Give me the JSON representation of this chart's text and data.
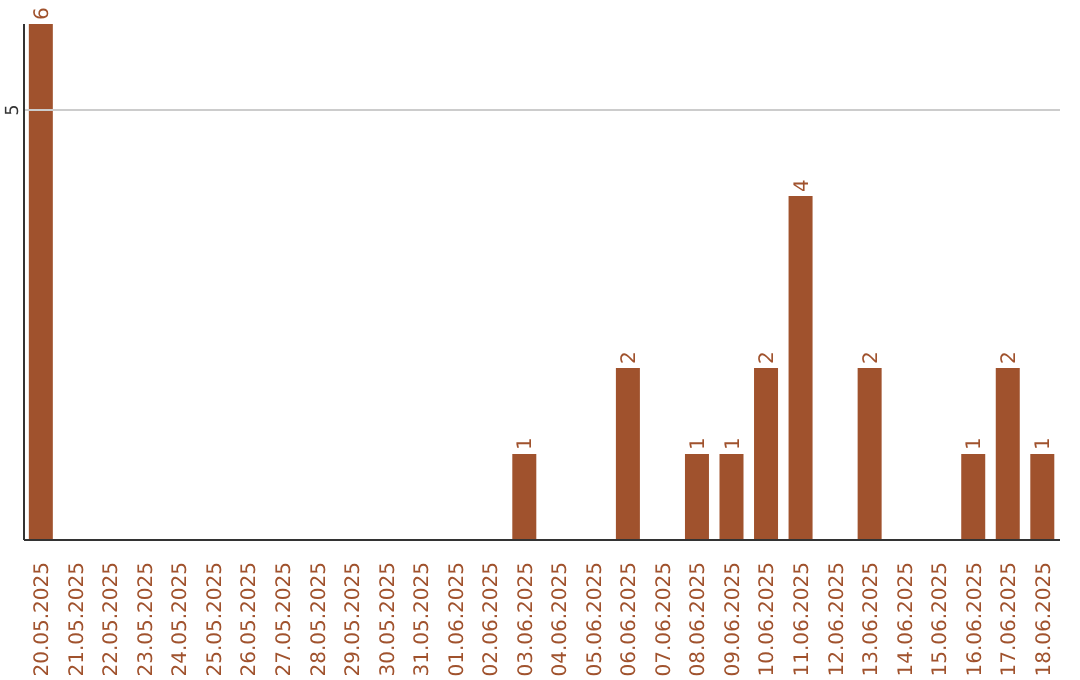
{
  "chart_data": {
    "type": "bar",
    "categories": [
      "20.05.2025",
      "21.05.2025",
      "22.05.2025",
      "23.05.2025",
      "24.05.2025",
      "25.05.2025",
      "26.05.2025",
      "27.05.2025",
      "28.05.2025",
      "29.05.2025",
      "30.05.2025",
      "31.05.2025",
      "01.06.2025",
      "02.06.2025",
      "03.06.2025",
      "04.06.2025",
      "05.06.2025",
      "06.06.2025",
      "07.06.2025",
      "08.06.2025",
      "09.06.2025",
      "10.06.2025",
      "11.06.2025",
      "12.06.2025",
      "13.06.2025",
      "14.06.2025",
      "15.06.2025",
      "16.06.2025",
      "17.06.2025",
      "18.06.2025"
    ],
    "values": [
      6,
      0,
      0,
      0,
      0,
      0,
      0,
      0,
      0,
      0,
      0,
      0,
      0,
      0,
      1,
      0,
      0,
      2,
      0,
      1,
      1,
      2,
      4,
      0,
      2,
      0,
      0,
      1,
      2,
      1
    ],
    "value_labels": [
      "6",
      null,
      null,
      null,
      null,
      null,
      null,
      null,
      null,
      null,
      null,
      null,
      null,
      null,
      "1",
      null,
      null,
      "2",
      null,
      "1",
      "1",
      "2",
      "4",
      null,
      "2",
      null,
      null,
      "1",
      "2",
      "1"
    ],
    "color": "#a0522d",
    "ylim": [
      0,
      6
    ],
    "yticks": [
      5
    ],
    "grid": "y"
  }
}
